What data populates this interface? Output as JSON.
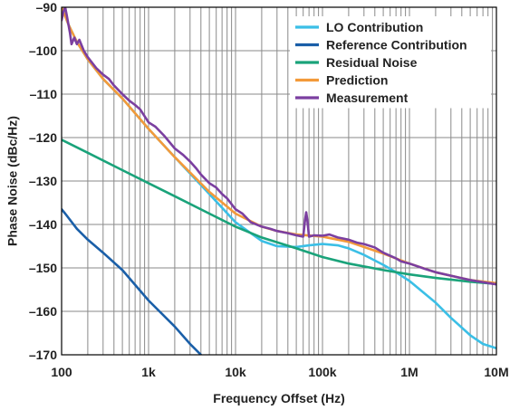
{
  "chart_data": {
    "type": "line",
    "xscale": "log",
    "xlim": [
      100,
      10000000
    ],
    "ylim": [
      -170,
      -90
    ],
    "grid": true,
    "legend_position": "top-right",
    "xlabel": "Frequency Offset (Hz)",
    "ylabel": "Phase Noise (dBc/Hz)",
    "x_ticks": [
      {
        "value": 100,
        "label": "100"
      },
      {
        "value": 1000,
        "label": "1k"
      },
      {
        "value": 10000,
        "label": "10k"
      },
      {
        "value": 100000,
        "label": "100k"
      },
      {
        "value": 1000000,
        "label": "1M"
      },
      {
        "value": 10000000,
        "label": "10M"
      }
    ],
    "y_ticks": [
      {
        "value": -90,
        "label": "–90"
      },
      {
        "value": -100,
        "label": "–100"
      },
      {
        "value": -110,
        "label": "–110"
      },
      {
        "value": -120,
        "label": "–120"
      },
      {
        "value": -130,
        "label": "–130"
      },
      {
        "value": -140,
        "label": "–140"
      },
      {
        "value": -150,
        "label": "–150"
      },
      {
        "value": -160,
        "label": "–160"
      },
      {
        "value": -170,
        "label": "–170"
      }
    ],
    "series": [
      {
        "name": "LO Contribution",
        "color": "#3bbfe6",
        "points": [
          [
            100,
            -90
          ],
          [
            120,
            -94
          ],
          [
            150,
            -98
          ],
          [
            200,
            -102
          ],
          [
            300,
            -106.5
          ],
          [
            500,
            -111
          ],
          [
            1000,
            -118
          ],
          [
            2000,
            -124.5
          ],
          [
            5000,
            -133
          ],
          [
            10000,
            -139.5
          ],
          [
            20000,
            -143.8
          ],
          [
            30000,
            -145
          ],
          [
            50000,
            -145.2
          ],
          [
            70000,
            -144.8
          ],
          [
            100000,
            -144.5
          ],
          [
            150000,
            -144.8
          ],
          [
            200000,
            -145.5
          ],
          [
            300000,
            -147
          ],
          [
            500000,
            -149.3
          ],
          [
            700000,
            -151
          ],
          [
            1000000,
            -153
          ],
          [
            2000000,
            -158
          ],
          [
            3000000,
            -161.5
          ],
          [
            5000000,
            -165.5
          ],
          [
            7000000,
            -167.5
          ],
          [
            10000000,
            -168.5
          ]
        ]
      },
      {
        "name": "Reference Contribution",
        "color": "#1a5fa8",
        "points": [
          [
            100,
            -136.5
          ],
          [
            110,
            -137.5
          ],
          [
            150,
            -141
          ],
          [
            200,
            -143.5
          ],
          [
            300,
            -146.5
          ],
          [
            500,
            -150.5
          ],
          [
            1000,
            -157.5
          ],
          [
            2000,
            -163.5
          ],
          [
            3000,
            -167.5
          ],
          [
            4000,
            -170
          ]
        ]
      },
      {
        "name": "Residual Noise",
        "color": "#1aa37a",
        "points": [
          [
            100,
            -120.5
          ],
          [
            200,
            -123.5
          ],
          [
            500,
            -127.5
          ],
          [
            1000,
            -130.5
          ],
          [
            2000,
            -133.5
          ],
          [
            5000,
            -137.5
          ],
          [
            10000,
            -140.5
          ],
          [
            20000,
            -143
          ],
          [
            50000,
            -145.5
          ],
          [
            100000,
            -147.5
          ],
          [
            200000,
            -149
          ],
          [
            500000,
            -150.5
          ],
          [
            1000000,
            -151.5
          ],
          [
            2000000,
            -152.3
          ],
          [
            5000000,
            -153.2
          ],
          [
            10000000,
            -153.7
          ]
        ]
      },
      {
        "name": "Prediction",
        "color": "#f39a3a",
        "points": [
          [
            100,
            -90
          ],
          [
            120,
            -94
          ],
          [
            150,
            -98
          ],
          [
            200,
            -102
          ],
          [
            300,
            -106.5
          ],
          [
            500,
            -111
          ],
          [
            1000,
            -118
          ],
          [
            2000,
            -124.5
          ],
          [
            5000,
            -132.5
          ],
          [
            10000,
            -137.5
          ],
          [
            20000,
            -140.5
          ],
          [
            30000,
            -141.5
          ],
          [
            50000,
            -142.3
          ],
          [
            100000,
            -142.8
          ],
          [
            200000,
            -144
          ],
          [
            500000,
            -146.7
          ],
          [
            1000000,
            -149
          ],
          [
            2000000,
            -151
          ],
          [
            5000000,
            -152.8
          ],
          [
            10000000,
            -153.5
          ]
        ]
      },
      {
        "name": "Measurement",
        "color": "#7b3fa0",
        "points": [
          [
            100,
            -93
          ],
          [
            105,
            -91
          ],
          [
            110,
            -90
          ],
          [
            115,
            -92
          ],
          [
            125,
            -96
          ],
          [
            130,
            -98.5
          ],
          [
            140,
            -97
          ],
          [
            150,
            -98.5
          ],
          [
            160,
            -97.5
          ],
          [
            180,
            -100
          ],
          [
            200,
            -101.5
          ],
          [
            250,
            -104
          ],
          [
            300,
            -105.5
          ],
          [
            350,
            -106.5
          ],
          [
            400,
            -108
          ],
          [
            500,
            -110
          ],
          [
            600,
            -111.5
          ],
          [
            700,
            -112.5
          ],
          [
            800,
            -113.5
          ],
          [
            1000,
            -116.5
          ],
          [
            1200,
            -117.5
          ],
          [
            1500,
            -119.5
          ],
          [
            2000,
            -122.5
          ],
          [
            2500,
            -124
          ],
          [
            3000,
            -125.5
          ],
          [
            3500,
            -127
          ],
          [
            4000,
            -128.5
          ],
          [
            5000,
            -130.5
          ],
          [
            6000,
            -131.5
          ],
          [
            7000,
            -133
          ],
          [
            8000,
            -134
          ],
          [
            10000,
            -136.5
          ],
          [
            12000,
            -137.5
          ],
          [
            15000,
            -139.5
          ],
          [
            20000,
            -140.5
          ],
          [
            25000,
            -141
          ],
          [
            30000,
            -141.5
          ],
          [
            40000,
            -142
          ],
          [
            50000,
            -142.5
          ],
          [
            60000,
            -142.8
          ],
          [
            63000,
            -139
          ],
          [
            65000,
            -137.2
          ],
          [
            67000,
            -139
          ],
          [
            70000,
            -142.8
          ],
          [
            80000,
            -142.5
          ],
          [
            100000,
            -142.6
          ],
          [
            120000,
            -142.3
          ],
          [
            150000,
            -143
          ],
          [
            200000,
            -143.5
          ],
          [
            250000,
            -144.2
          ],
          [
            300000,
            -144.5
          ],
          [
            400000,
            -145.3
          ],
          [
            500000,
            -146.5
          ],
          [
            600000,
            -147.2
          ],
          [
            700000,
            -147.8
          ],
          [
            800000,
            -148.5
          ],
          [
            1000000,
            -149
          ],
          [
            1500000,
            -150.2
          ],
          [
            2000000,
            -151
          ],
          [
            3000000,
            -151.8
          ],
          [
            5000000,
            -152.8
          ],
          [
            7000000,
            -153.3
          ],
          [
            10000000,
            -153.8
          ]
        ]
      }
    ]
  }
}
